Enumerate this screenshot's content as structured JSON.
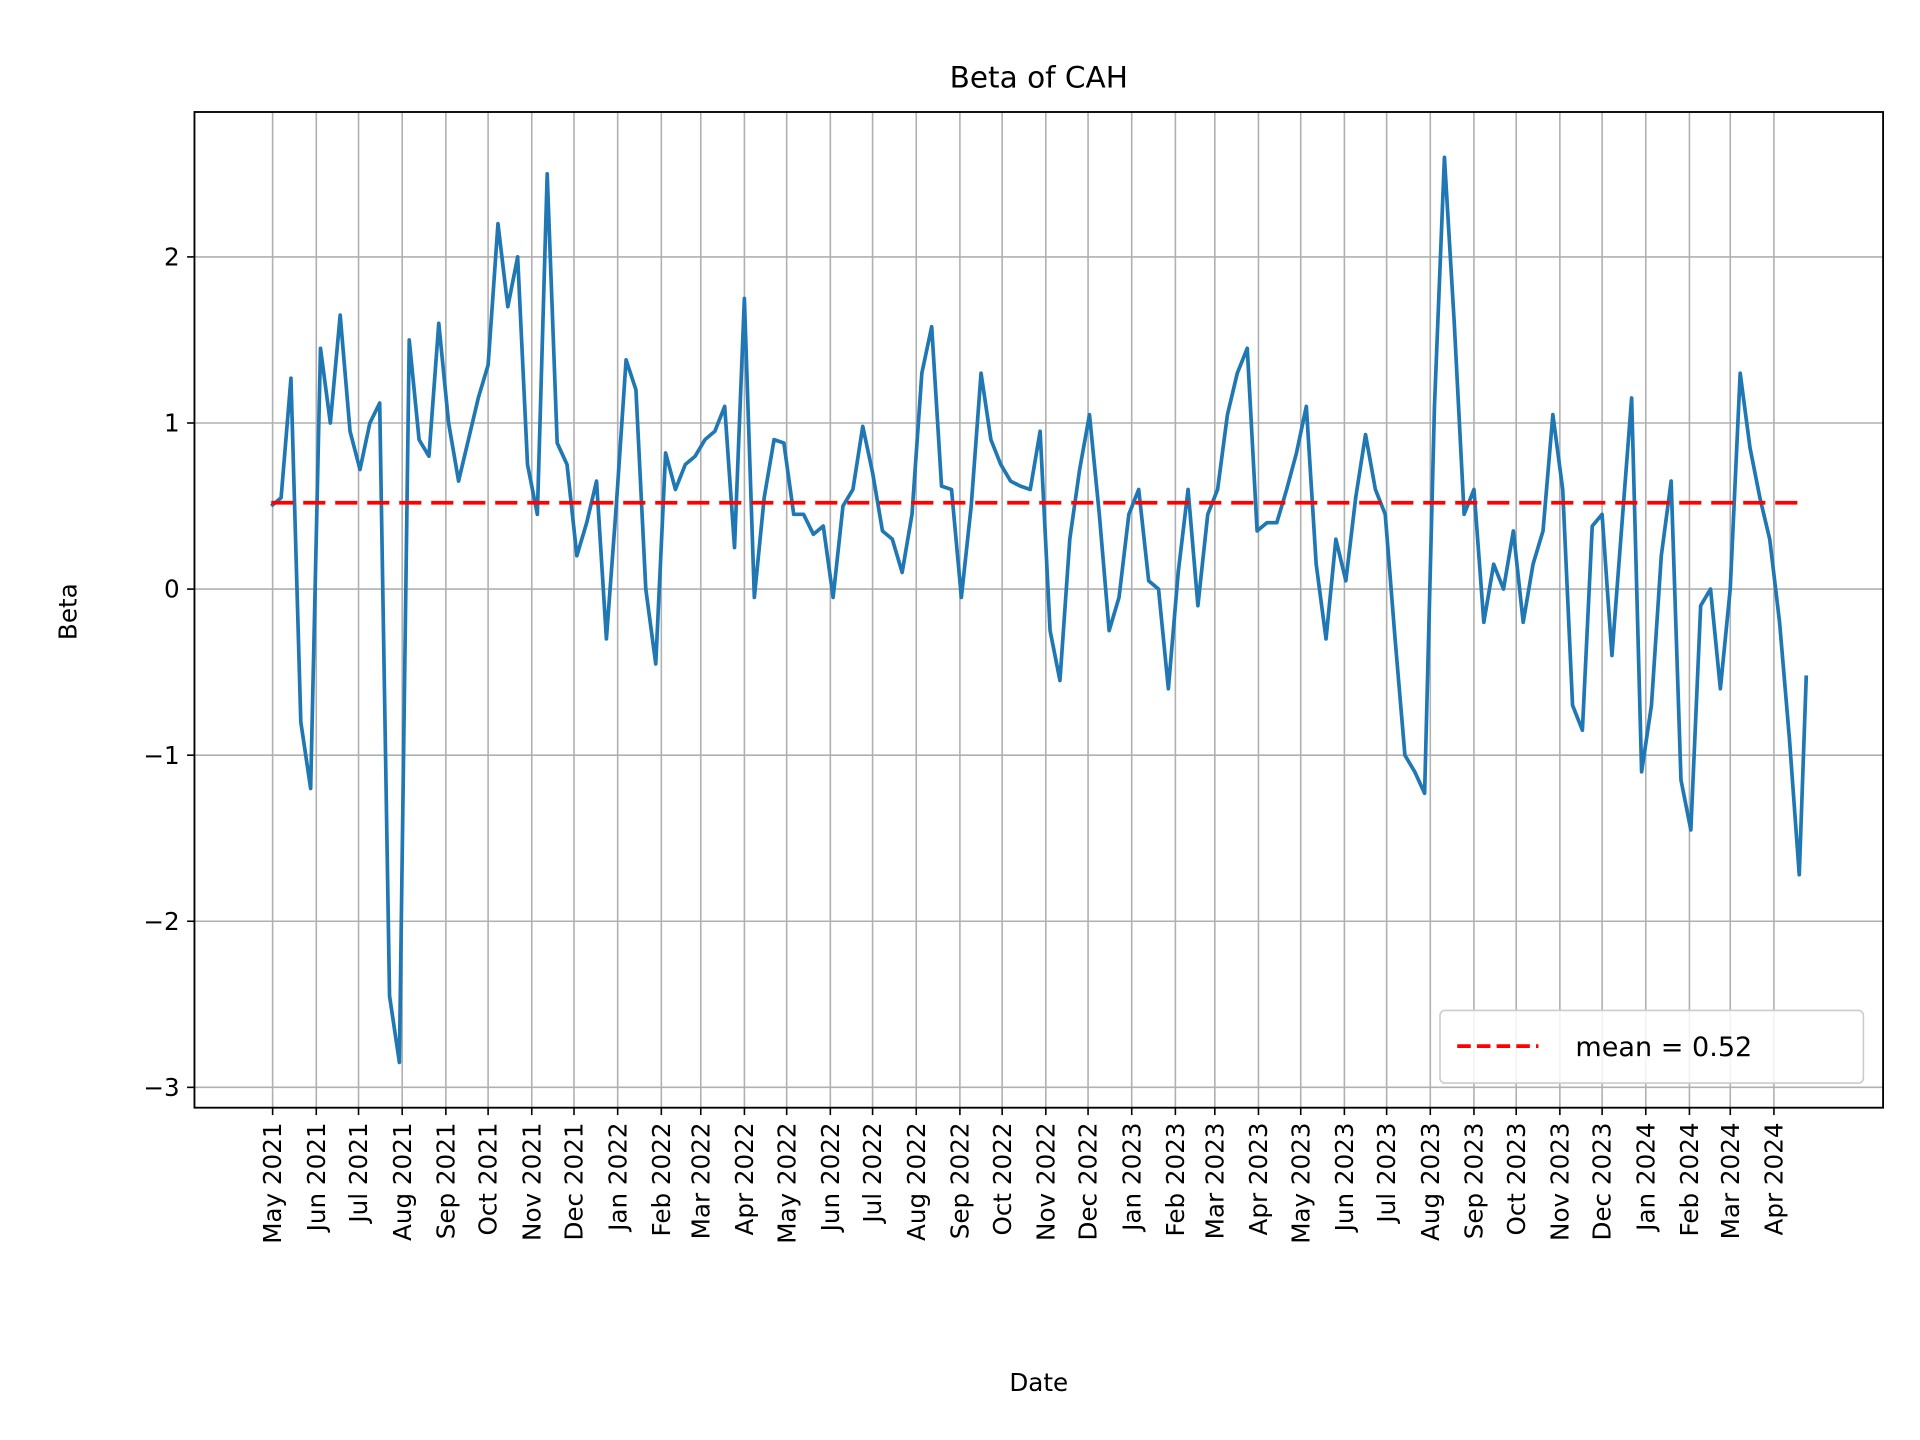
{
  "chart_data": {
    "type": "line",
    "title": "Beta of CAH",
    "xlabel": "Date",
    "ylabel": "Beta",
    "grid": true,
    "legend_position": "lower-right",
    "colors": {
      "series": "#1f77b4",
      "mean": "#ff0000",
      "grid": "#b0b0b0"
    },
    "yticks": [
      -3,
      -2,
      -1,
      0,
      1,
      2
    ],
    "ytick_labels": [
      "−3",
      "−2",
      "−1",
      "0",
      "1",
      "2"
    ],
    "xtick_labels": [
      "May 2021",
      "Jun 2021",
      "Jul 2021",
      "Aug 2021",
      "Sep 2021",
      "Oct 2021",
      "Nov 2021",
      "Dec 2021",
      "Jan 2022",
      "Feb 2022",
      "Mar 2022",
      "Apr 2022",
      "May 2022",
      "Jun 2022",
      "Jul 2022",
      "Aug 2022",
      "Sep 2022",
      "Oct 2022",
      "Nov 2022",
      "Dec 2022",
      "Jan 2023",
      "Feb 2023",
      "Mar 2023",
      "Apr 2023",
      "May 2023",
      "Jun 2023",
      "Jul 2023",
      "Aug 2023",
      "Sep 2023",
      "Oct 2023",
      "Nov 2023",
      "Dec 2023",
      "Jan 2024",
      "Feb 2024",
      "Mar 2024",
      "Apr 2024"
    ],
    "mean": {
      "value": 0.52,
      "label": "mean = 0.52",
      "style": "dashed"
    },
    "series": [
      {
        "x": [
          "2021-04-30",
          "2021-05-07",
          "2021-05-14",
          "2021-05-21",
          "2021-05-28",
          "2021-06-04",
          "2021-06-11",
          "2021-06-18",
          "2021-06-25",
          "2021-07-02",
          "2021-07-09",
          "2021-07-16",
          "2021-07-23",
          "2021-07-30",
          "2021-08-06",
          "2021-08-13",
          "2021-08-20",
          "2021-08-27",
          "2021-09-03",
          "2021-09-10",
          "2021-09-17",
          "2021-09-24",
          "2021-10-01",
          "2021-10-08",
          "2021-10-15",
          "2021-10-22",
          "2021-10-29",
          "2021-11-05",
          "2021-11-12",
          "2021-11-19",
          "2021-11-26",
          "2021-12-03",
          "2021-12-10",
          "2021-12-17",
          "2021-12-24",
          "2021-12-31",
          "2022-01-07",
          "2022-01-14",
          "2022-01-21",
          "2022-01-28",
          "2022-02-04",
          "2022-02-11",
          "2022-02-18",
          "2022-02-25",
          "2022-03-04",
          "2022-03-11",
          "2022-03-18",
          "2022-03-25",
          "2022-04-01",
          "2022-04-08",
          "2022-04-15",
          "2022-04-22",
          "2022-04-29",
          "2022-05-06",
          "2022-05-13",
          "2022-05-20",
          "2022-05-27",
          "2022-06-03",
          "2022-06-10",
          "2022-06-17",
          "2022-06-24",
          "2022-07-01",
          "2022-07-08",
          "2022-07-15",
          "2022-07-22",
          "2022-07-29",
          "2022-08-05",
          "2022-08-12",
          "2022-08-19",
          "2022-08-26",
          "2022-09-02",
          "2022-09-09",
          "2022-09-16",
          "2022-09-23",
          "2022-09-30",
          "2022-10-07",
          "2022-10-14",
          "2022-10-21",
          "2022-10-28",
          "2022-11-04",
          "2022-11-11",
          "2022-11-18",
          "2022-11-25",
          "2022-12-02",
          "2022-12-09",
          "2022-12-16",
          "2022-12-23",
          "2022-12-30",
          "2023-01-06",
          "2023-01-13",
          "2023-01-20",
          "2023-01-27",
          "2023-02-03",
          "2023-02-10",
          "2023-02-17",
          "2023-02-24",
          "2023-03-03",
          "2023-03-10",
          "2023-03-17",
          "2023-03-24",
          "2023-03-31",
          "2023-04-07",
          "2023-04-14",
          "2023-04-21",
          "2023-04-28",
          "2023-05-05",
          "2023-05-12",
          "2023-05-19",
          "2023-05-26",
          "2023-06-02",
          "2023-06-09",
          "2023-06-16",
          "2023-06-23",
          "2023-06-30",
          "2023-07-07",
          "2023-07-14",
          "2023-07-21",
          "2023-07-28",
          "2023-08-04",
          "2023-08-11",
          "2023-08-18",
          "2023-08-25",
          "2023-09-01",
          "2023-09-08",
          "2023-09-15",
          "2023-09-22",
          "2023-09-29",
          "2023-10-06",
          "2023-10-13",
          "2023-10-20",
          "2023-10-27",
          "2023-11-03",
          "2023-11-10",
          "2023-11-17",
          "2023-11-24",
          "2023-12-01",
          "2023-12-08",
          "2023-12-15",
          "2023-12-22",
          "2023-12-29",
          "2024-01-05",
          "2024-01-12",
          "2024-01-19",
          "2024-01-26",
          "2024-02-02",
          "2024-02-09",
          "2024-02-16",
          "2024-02-23",
          "2024-03-01",
          "2024-03-08",
          "2024-03-15",
          "2024-03-22",
          "2024-03-29",
          "2024-04-05",
          "2024-04-12",
          "2024-04-19",
          "2024-04-24"
        ],
        "y": [
          0.5,
          0.55,
          1.27,
          -0.8,
          -1.2,
          1.45,
          1.0,
          1.65,
          0.95,
          0.72,
          1.0,
          1.12,
          -2.45,
          -2.85,
          1.5,
          0.9,
          0.8,
          1.6,
          1.0,
          0.65,
          0.9,
          1.15,
          1.35,
          2.2,
          1.7,
          2.0,
          0.75,
          0.45,
          2.5,
          0.88,
          0.75,
          0.2,
          0.4,
          0.65,
          -0.3,
          0.5,
          1.38,
          1.2,
          0.0,
          -0.45,
          0.82,
          0.6,
          0.75,
          0.8,
          0.9,
          0.95,
          1.1,
          0.25,
          1.75,
          -0.05,
          0.55,
          0.9,
          0.88,
          0.45,
          0.45,
          0.33,
          0.38,
          -0.05,
          0.5,
          0.6,
          0.98,
          0.7,
          0.35,
          0.3,
          0.1,
          0.45,
          1.3,
          1.58,
          0.62,
          0.6,
          -0.05,
          0.5,
          1.3,
          0.9,
          0.75,
          0.65,
          0.62,
          0.6,
          0.95,
          -0.25,
          -0.55,
          0.3,
          0.72,
          1.05,
          0.45,
          -0.25,
          -0.05,
          0.45,
          0.6,
          0.05,
          0.0,
          -0.6,
          0.1,
          0.6,
          -0.1,
          0.45,
          0.6,
          1.05,
          1.3,
          1.45,
          0.35,
          0.4,
          0.4,
          0.6,
          0.82,
          1.1,
          0.15,
          -0.3,
          0.3,
          0.05,
          0.55,
          0.93,
          0.6,
          0.45,
          -0.3,
          -1.0,
          -1.1,
          -1.23,
          1.1,
          2.6,
          1.6,
          0.45,
          0.6,
          -0.2,
          0.15,
          0.0,
          0.35,
          -0.2,
          0.15,
          0.35,
          1.05,
          0.6,
          -0.7,
          -0.85,
          0.38,
          0.45,
          -0.4,
          0.38,
          1.15,
          -1.1,
          -0.7,
          0.2,
          0.65,
          -1.15,
          -1.45,
          -0.1,
          0.0,
          -0.6,
          0.0,
          1.3,
          0.85,
          0.55,
          0.3,
          -0.2,
          -0.9,
          -1.72,
          -0.52
        ]
      }
    ]
  }
}
